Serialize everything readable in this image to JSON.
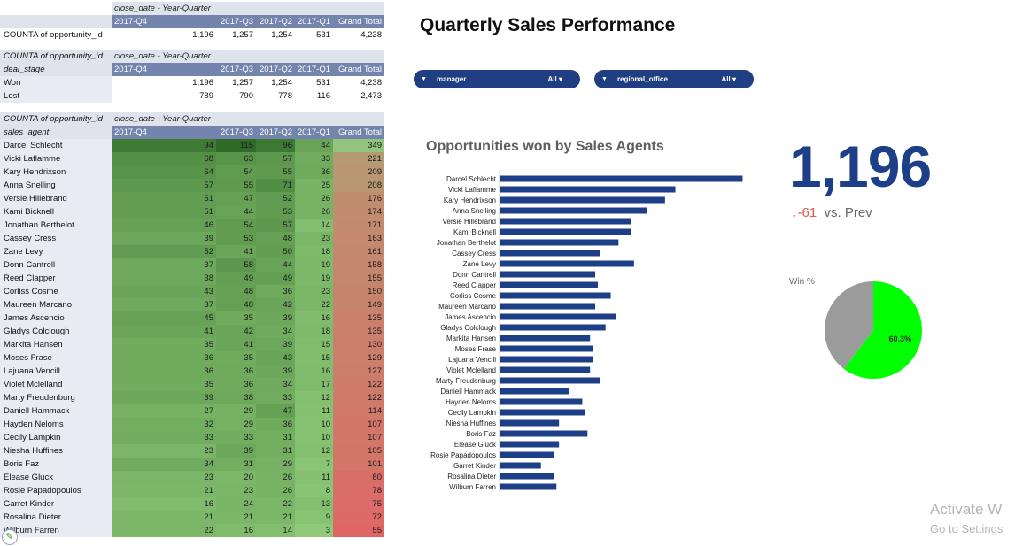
{
  "pivot_top": {
    "date_header": "close_date - Year-Quarter",
    "columns": [
      "2017-Q4",
      "2017-Q3",
      "2017-Q2",
      "2017-Q1",
      "Grand Total"
    ],
    "row": {
      "label": "COUNTA of opportunity_id",
      "values": [
        "1,196",
        "1,257",
        "1,254",
        "531",
        "4,238"
      ]
    }
  },
  "pivot_stage": {
    "measure": "COUNTA of opportunity_id",
    "date_header": "close_date - Year-Quarter",
    "row_header": "deal_stage",
    "columns": [
      "2017-Q4",
      "2017-Q3",
      "2017-Q2",
      "2017-Q1",
      "Grand Total"
    ],
    "rows": [
      {
        "label": "Won",
        "values": [
          "1,196",
          "1,257",
          "1,254",
          "531",
          "4,238"
        ]
      },
      {
        "label": "Lost",
        "values": [
          "789",
          "790",
          "778",
          "116",
          "2,473"
        ]
      }
    ]
  },
  "pivot_agents": {
    "measure": "COUNTA of opportunity_id",
    "date_header": "close_date - Year-Quarter",
    "row_header": "sales_agent",
    "columns": [
      "2017-Q4",
      "2017-Q3",
      "2017-Q2",
      "2017-Q1",
      "Grand Total"
    ],
    "rows": [
      {
        "label": "Darcel Schlecht",
        "values": [
          94,
          115,
          96,
          44,
          349
        ]
      },
      {
        "label": "Vicki Laflamme",
        "values": [
          68,
          63,
          57,
          33,
          221
        ]
      },
      {
        "label": "Kary Hendrixson",
        "values": [
          64,
          54,
          55,
          36,
          209
        ]
      },
      {
        "label": "Anna Snelling",
        "values": [
          57,
          55,
          71,
          25,
          208
        ]
      },
      {
        "label": "Versie Hillebrand",
        "values": [
          51,
          47,
          52,
          26,
          176
        ]
      },
      {
        "label": "Kami Bicknell",
        "values": [
          51,
          44,
          53,
          26,
          174
        ]
      },
      {
        "label": "Jonathan Berthelot",
        "values": [
          46,
          54,
          57,
          14,
          171
        ]
      },
      {
        "label": "Cassey Cress",
        "values": [
          39,
          53,
          48,
          23,
          163
        ]
      },
      {
        "label": "Zane Levy",
        "values": [
          52,
          41,
          50,
          18,
          161
        ]
      },
      {
        "label": "Donn Cantrell",
        "values": [
          37,
          58,
          44,
          19,
          158
        ]
      },
      {
        "label": "Reed Clapper",
        "values": [
          38,
          49,
          49,
          19,
          155
        ]
      },
      {
        "label": "Corliss Cosme",
        "values": [
          43,
          48,
          36,
          23,
          150
        ]
      },
      {
        "label": "Maureen Marcano",
        "values": [
          37,
          48,
          42,
          22,
          149
        ]
      },
      {
        "label": "James Ascencio",
        "values": [
          45,
          35,
          39,
          16,
          135
        ]
      },
      {
        "label": "Gladys Colclough",
        "values": [
          41,
          42,
          34,
          18,
          135
        ]
      },
      {
        "label": "Markita Hansen",
        "values": [
          35,
          41,
          39,
          15,
          130
        ]
      },
      {
        "label": "Moses Frase",
        "values": [
          36,
          35,
          43,
          15,
          129
        ]
      },
      {
        "label": "Lajuana Vencill",
        "values": [
          36,
          36,
          39,
          16,
          127
        ]
      },
      {
        "label": "Violet Mclelland",
        "values": [
          35,
          36,
          34,
          17,
          122
        ]
      },
      {
        "label": "Marty Freudenburg",
        "values": [
          39,
          38,
          33,
          12,
          122
        ]
      },
      {
        "label": "Daniell Hammack",
        "values": [
          27,
          29,
          47,
          11,
          114
        ]
      },
      {
        "label": "Hayden Neloms",
        "values": [
          32,
          29,
          36,
          10,
          107
        ]
      },
      {
        "label": "Cecily Lampkin",
        "values": [
          33,
          33,
          31,
          10,
          107
        ]
      },
      {
        "label": "Niesha Huffines",
        "values": [
          23,
          39,
          31,
          12,
          105
        ]
      },
      {
        "label": "Boris Faz",
        "values": [
          34,
          31,
          29,
          7,
          101
        ]
      },
      {
        "label": "Elease Gluck",
        "values": [
          23,
          20,
          26,
          11,
          80
        ]
      },
      {
        "label": "Rosie Papadopoulos",
        "values": [
          21,
          23,
          26,
          8,
          78
        ]
      },
      {
        "label": "Garret Kinder",
        "values": [
          16,
          24,
          22,
          13,
          75
        ]
      },
      {
        "label": "Rosalina Dieter",
        "values": [
          21,
          21,
          21,
          9,
          72
        ]
      },
      {
        "label": "Wilburn Farren",
        "values": [
          22,
          16,
          14,
          3,
          55
        ]
      }
    ]
  },
  "dashboard": {
    "title": "Quarterly Sales Performance",
    "filters": [
      {
        "label": "manager",
        "value": "All"
      },
      {
        "label": "regional_office",
        "value": "All"
      }
    ],
    "kpi": {
      "value": "1,196",
      "delta": "-61",
      "delta_suffix": "vs. Prev",
      "arrow": "↓"
    },
    "icons": {
      "filter": "filter-triangle-icon",
      "dropdown": "caret-down-icon",
      "edit": "pencil-icon",
      "delta": "arrow-down-icon"
    },
    "colors": {
      "bar": "#1c3f87",
      "filter_bg": "#1f3f82",
      "header": "#7385ad",
      "kpi": "#1c3f87",
      "delta": "#e05a4f",
      "pie_won": "#00ff00",
      "pie_other": "#9b9b9b"
    },
    "heatmap_colors": {
      "low": "#8fc979",
      "high": "#2f6b26",
      "total_low": "#e06666",
      "total_high": "#93c47d"
    }
  },
  "watermark": {
    "line1": "Activate W",
    "line2": "Go to Settings"
  },
  "chart_data": [
    {
      "type": "bar",
      "orientation": "horizontal",
      "title": "Opportunities won by Sales Agents",
      "categories": [
        "Darcel Schlecht",
        "Vicki Laflamme",
        "Kary Hendrixson",
        "Anna Snelling",
        "Versie Hillebrand",
        "Kami Bicknell",
        "Jonathan Berthelot",
        "Cassey Cress",
        "Zane Levy",
        "Donn Cantrell",
        "Reed Clapper",
        "Corliss Cosme",
        "Maureen Marcano",
        "James Ascencio",
        "Gladys Colclough",
        "Markita Hansen",
        "Moses Frase",
        "Lajuana Vencill",
        "Violet Mclelland",
        "Marty Freudenburg",
        "Daniell Hammack",
        "Hayden Neloms",
        "Cecily Lampkin",
        "Niesha Huffines",
        "Boris Faz",
        "Elease Gluck",
        "Rosie Papadopoulos",
        "Garret Kinder",
        "Rosalina Dieter",
        "Wilburn Farren"
      ],
      "values": [
        94,
        68,
        64,
        57,
        51,
        51,
        46,
        39,
        52,
        37,
        38,
        43,
        37,
        45,
        41,
        35,
        36,
        36,
        35,
        39,
        27,
        32,
        33,
        23,
        34,
        23,
        21,
        16,
        21,
        22
      ],
      "xlim": [
        0,
        100
      ],
      "xticks": [
        "0",
        "25",
        "50",
        "75",
        "100"
      ],
      "grid": false
    },
    {
      "type": "pie",
      "title": "Win %",
      "slices": [
        {
          "label": "Won",
          "value": 60.3,
          "display": "60.3%"
        },
        {
          "label": "Lost",
          "value": 39.7
        }
      ]
    }
  ]
}
